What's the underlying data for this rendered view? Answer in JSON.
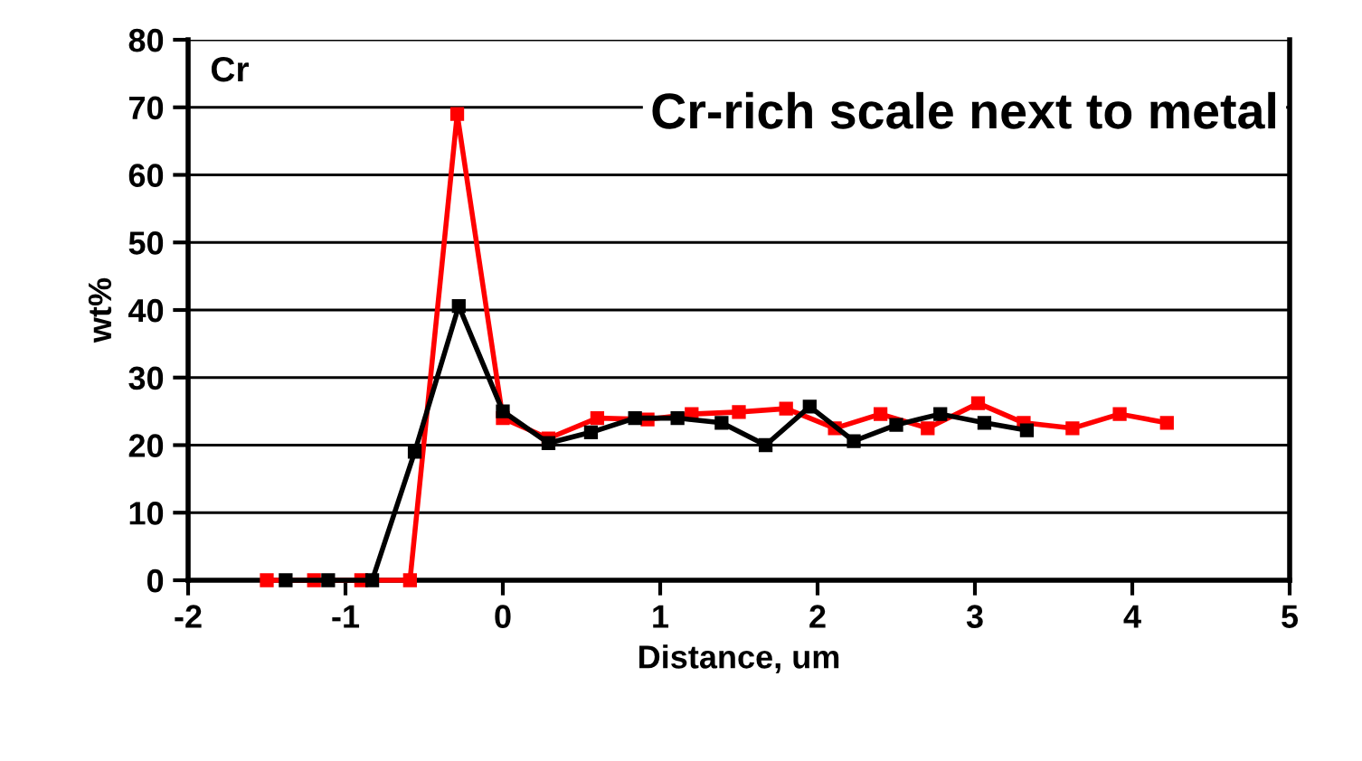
{
  "chart_data": {
    "type": "line",
    "xlabel": "Distance, um",
    "ylabel": "wt%",
    "annotations": [
      "Cr",
      "Cr-rich scale next to metal"
    ],
    "xlim": [
      -2,
      5
    ],
    "xticks": [
      -2,
      -1,
      0,
      1,
      2,
      3,
      4,
      5
    ],
    "ylim": [
      0,
      80
    ],
    "yticks": [
      0,
      10,
      20,
      30,
      40,
      50,
      60,
      70,
      80
    ],
    "grid": "y",
    "marker": "square",
    "line_style": "solid",
    "legend": false,
    "series": [
      {
        "color": "#ff0000",
        "x": [
          -1.5,
          -1.2,
          -0.9,
          -0.59,
          -0.29,
          0,
          0.29,
          0.6,
          0.92,
          1.2,
          1.5,
          1.8,
          2.11,
          2.4,
          2.7,
          3.02,
          3.31,
          3.62,
          3.92,
          4.22
        ],
        "values": [
          0,
          0,
          0,
          0,
          69,
          24,
          21,
          24,
          23.8,
          24.6,
          24.9,
          25.4,
          22.5,
          24.6,
          22.5,
          26.2,
          23.3,
          22.5,
          24.6,
          23.3
        ]
      },
      {
        "color": "#000000",
        "x": [
          -1.38,
          -1.11,
          -0.83,
          -0.56,
          -0.28,
          0,
          0.29,
          0.56,
          0.84,
          1.11,
          1.39,
          1.67,
          1.95,
          2.23,
          2.5,
          2.78,
          3.06,
          3.33
        ],
        "values": [
          0,
          0,
          0,
          19,
          40.6,
          25,
          20.3,
          21.9,
          24,
          24,
          23.3,
          20,
          25.7,
          20.6,
          23,
          24.6,
          23.3,
          22.2
        ]
      }
    ]
  }
}
